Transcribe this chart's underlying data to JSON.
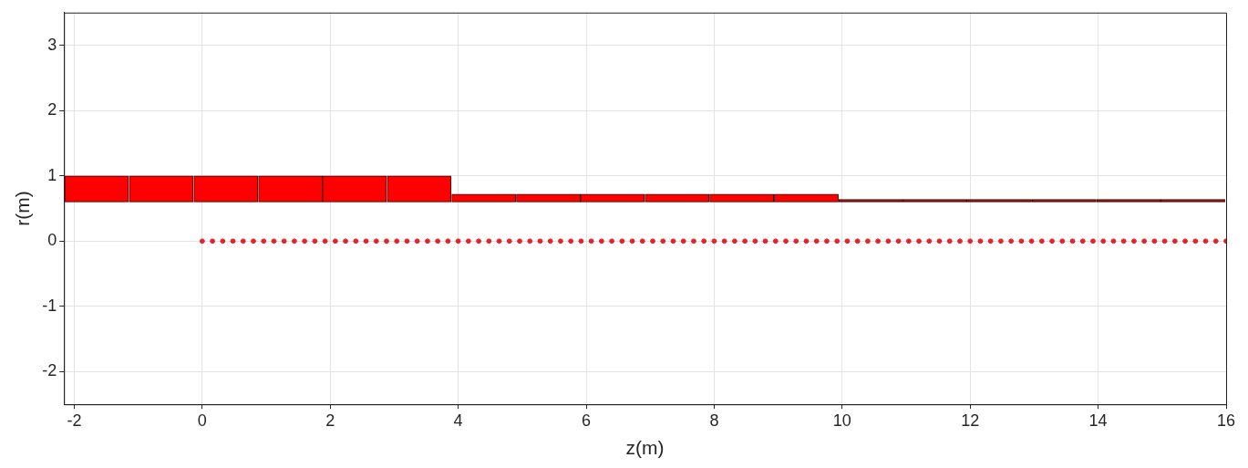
{
  "chart_data": {
    "type": "bar",
    "xlabel": "z(m)",
    "ylabel": "r(m)",
    "xlim": [
      -2.16,
      16
    ],
    "xticks": [
      -2,
      0,
      2,
      4,
      6,
      8,
      10,
      12,
      14,
      16
    ],
    "ylim": [
      -2.5,
      3.5
    ],
    "yticks": [
      -2,
      -1,
      0,
      1,
      2,
      3
    ],
    "grid": true,
    "legend": false,
    "series": [
      {
        "x": [
          -1.65,
          -0.64,
          0.37,
          1.38,
          2.38,
          3.39,
          4.4,
          5.41,
          6.41,
          7.42,
          8.43,
          9.44,
          10.45,
          11.45,
          12.46,
          13.47,
          14.48,
          15.48
        ],
        "base": [
          0.6,
          0.6,
          0.6,
          0.6,
          0.6,
          0.6,
          0.6,
          0.6,
          0.6,
          0.6,
          0.6,
          0.6,
          0.6,
          0.6,
          0.6,
          0.6,
          0.6,
          0.6
        ],
        "values": [
          0.4,
          0.4,
          0.4,
          0.4,
          0.4,
          0.4,
          0.12,
          0.12,
          0.12,
          0.12,
          0.12,
          0.12,
          0.04,
          0.04,
          0.04,
          0.04,
          0.04,
          0.04
        ],
        "colors": [
          "#ff0000",
          "#ff0000",
          "#ff0000",
          "#ff0000",
          "#ff0000",
          "#ff0000",
          "#ff0000",
          "#ff0000",
          "#ff0000",
          "#ff0000",
          "#ff0000",
          "#ff0000",
          "#8b1010",
          "#8b1010",
          "#8b1010",
          "#8b1010",
          "#8b1010",
          "#8b1010"
        ]
      },
      {
        "type": "scatter",
        "marker": "circle",
        "color": "#e8202a",
        "x": [
          0,
          0.16,
          0.32,
          0.48,
          0.64,
          0.8,
          0.96,
          1.12,
          1.28,
          1.44,
          1.6,
          1.76,
          1.92,
          2.08,
          2.24,
          2.4,
          2.56,
          2.72,
          2.88,
          3.04,
          3.2,
          3.36,
          3.52,
          3.68,
          3.84,
          4,
          4.16,
          4.32,
          4.48,
          4.64,
          4.8,
          4.96,
          5.12,
          5.28,
          5.44,
          5.6,
          5.76,
          5.92,
          6.08,
          6.24,
          6.4,
          6.56,
          6.72,
          6.88,
          7.04,
          7.2,
          7.36,
          7.52,
          7.68,
          7.84,
          8,
          8.16,
          8.32,
          8.48,
          8.64,
          8.8,
          8.96,
          9.12,
          9.28,
          9.44,
          9.6,
          9.76,
          9.92,
          10.08,
          10.24,
          10.4,
          10.56,
          10.72,
          10.88,
          11.04,
          11.2,
          11.36,
          11.52,
          11.68,
          11.84,
          12,
          12.16,
          12.32,
          12.48,
          12.64,
          12.8,
          12.96,
          13.12,
          13.28,
          13.44,
          13.6,
          13.76,
          13.92,
          14.08,
          14.24,
          14.4,
          14.56,
          14.72,
          14.88,
          15.04,
          15.2,
          15.36,
          15.52,
          15.68,
          15.84,
          16
        ],
        "values": [
          0,
          0,
          0,
          0,
          0,
          0,
          0,
          0,
          0,
          0,
          0,
          0,
          0,
          0,
          0,
          0,
          0,
          0,
          0,
          0,
          0,
          0,
          0,
          0,
          0,
          0,
          0,
          0,
          0,
          0,
          0,
          0,
          0,
          0,
          0,
          0,
          0,
          0,
          0,
          0,
          0,
          0,
          0,
          0,
          0,
          0,
          0,
          0,
          0,
          0,
          0,
          0,
          0,
          0,
          0,
          0,
          0,
          0,
          0,
          0,
          0,
          0,
          0,
          0,
          0,
          0,
          0,
          0,
          0,
          0,
          0,
          0,
          0,
          0,
          0,
          0,
          0,
          0,
          0,
          0,
          0,
          0,
          0,
          0,
          0,
          0,
          0,
          0,
          0,
          0,
          0,
          0,
          0,
          0,
          0,
          0,
          0,
          0,
          0,
          0,
          0
        ]
      }
    ]
  }
}
